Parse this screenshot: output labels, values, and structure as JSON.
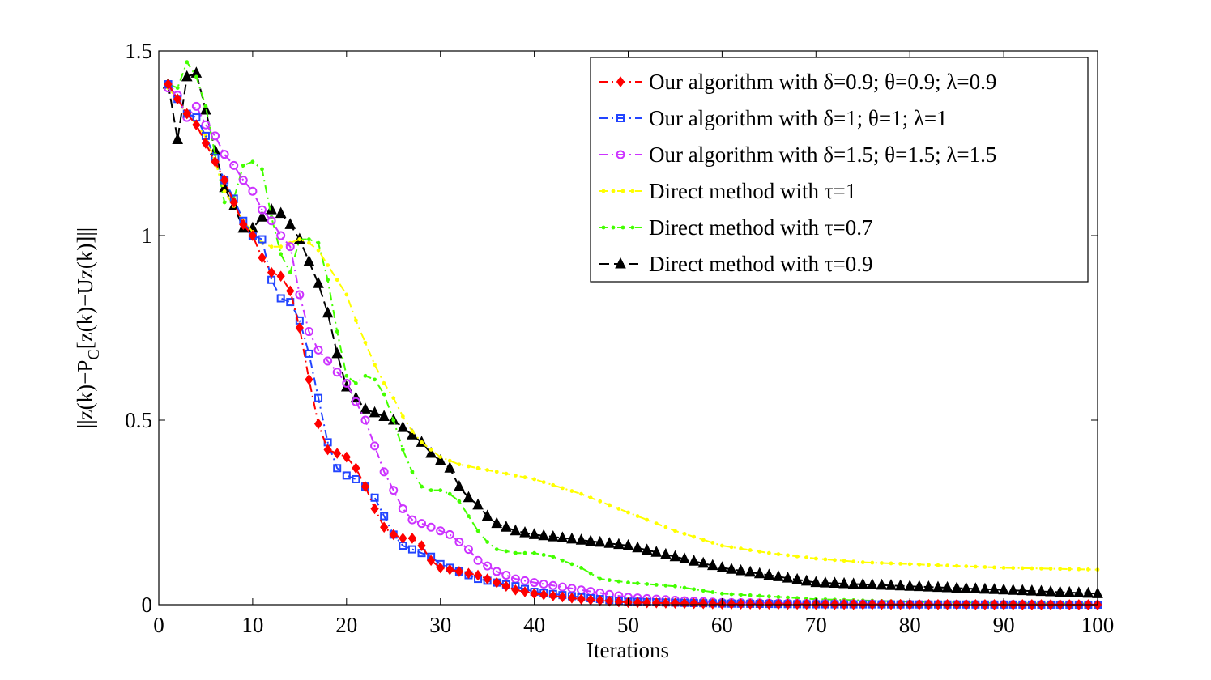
{
  "chart_data": {
    "type": "line",
    "title": "",
    "xlabel": "Iterations",
    "ylabel_main": "||z(k)−P",
    "ylabel_sub": "C",
    "ylabel_rest": "[z(k)−Uz(k)]||",
    "xlim": [
      0,
      100
    ],
    "ylim": [
      0,
      1.5
    ],
    "xticks": [
      0,
      10,
      20,
      30,
      40,
      50,
      60,
      70,
      80,
      90,
      100
    ],
    "xtick_labels": [
      "0",
      "10",
      "20",
      "30",
      "40",
      "50",
      "60",
      "70",
      "80",
      "90",
      "100"
    ],
    "yticks": [
      0,
      0.5,
      1,
      1.5
    ],
    "ytick_labels": [
      "0",
      "0.5",
      "1",
      "1.5"
    ],
    "grid": false,
    "legend_position": "top-right",
    "series": [
      {
        "name": "Our algorithm with δ=0.9; θ=0.9; λ=0.9",
        "color": "#ff0000",
        "marker": "diamond",
        "dash": "dashdot",
        "keypoints": [
          [
            1,
            1.41
          ],
          [
            2,
            1.37
          ],
          [
            3,
            1.33
          ],
          [
            4,
            1.3
          ],
          [
            5,
            1.25
          ],
          [
            6,
            1.2
          ],
          [
            7,
            1.15
          ],
          [
            8,
            1.09
          ],
          [
            9,
            1.03
          ],
          [
            10,
            1.0
          ],
          [
            11,
            0.94
          ],
          [
            12,
            0.9
          ],
          [
            13,
            0.89
          ],
          [
            14,
            0.85
          ],
          [
            15,
            0.75
          ],
          [
            16,
            0.61
          ],
          [
            17,
            0.49
          ],
          [
            18,
            0.42
          ],
          [
            19,
            0.41
          ],
          [
            20,
            0.4
          ],
          [
            21,
            0.37
          ],
          [
            22,
            0.32
          ],
          [
            23,
            0.26
          ],
          [
            24,
            0.21
          ],
          [
            25,
            0.19
          ],
          [
            26,
            0.18
          ],
          [
            27,
            0.18
          ],
          [
            28,
            0.16
          ],
          [
            29,
            0.12
          ],
          [
            30,
            0.1
          ],
          [
            32,
            0.09
          ],
          [
            34,
            0.08
          ],
          [
            36,
            0.06
          ],
          [
            38,
            0.04
          ],
          [
            40,
            0.03
          ],
          [
            45,
            0.015
          ],
          [
            50,
            0.006
          ],
          [
            60,
            0.002
          ],
          [
            70,
            0.001
          ],
          [
            100,
            0.0
          ]
        ]
      },
      {
        "name": "Our algorithm with δ=1; θ=1; λ=1",
        "color": "#2244ff",
        "marker": "square",
        "dash": "dashdot",
        "keypoints": [
          [
            1,
            1.41
          ],
          [
            2,
            1.37
          ],
          [
            3,
            1.33
          ],
          [
            4,
            1.32
          ],
          [
            5,
            1.27
          ],
          [
            6,
            1.21
          ],
          [
            7,
            1.15
          ],
          [
            8,
            1.1
          ],
          [
            9,
            1.04
          ],
          [
            10,
            1.0
          ],
          [
            11,
            0.99
          ],
          [
            12,
            0.88
          ],
          [
            13,
            0.83
          ],
          [
            14,
            0.82
          ],
          [
            15,
            0.77
          ],
          [
            16,
            0.68
          ],
          [
            17,
            0.56
          ],
          [
            18,
            0.44
          ],
          [
            19,
            0.37
          ],
          [
            20,
            0.35
          ],
          [
            21,
            0.34
          ],
          [
            22,
            0.32
          ],
          [
            23,
            0.29
          ],
          [
            24,
            0.24
          ],
          [
            25,
            0.19
          ],
          [
            26,
            0.16
          ],
          [
            27,
            0.15
          ],
          [
            28,
            0.14
          ],
          [
            29,
            0.13
          ],
          [
            30,
            0.11
          ],
          [
            32,
            0.09
          ],
          [
            34,
            0.07
          ],
          [
            36,
            0.06
          ],
          [
            38,
            0.05
          ],
          [
            40,
            0.035
          ],
          [
            45,
            0.02
          ],
          [
            50,
            0.008
          ],
          [
            60,
            0.003
          ],
          [
            70,
            0.001
          ],
          [
            100,
            0.0
          ]
        ]
      },
      {
        "name": "Our algorithm with δ=1.5; θ=1.5; λ=1.5",
        "color": "#cc33ff",
        "marker": "circle",
        "dash": "dashdot",
        "keypoints": [
          [
            1,
            1.4
          ],
          [
            2,
            1.38
          ],
          [
            3,
            1.32
          ],
          [
            4,
            1.35
          ],
          [
            5,
            1.3
          ],
          [
            6,
            1.27
          ],
          [
            7,
            1.22
          ],
          [
            8,
            1.19
          ],
          [
            9,
            1.15
          ],
          [
            10,
            1.12
          ],
          [
            11,
            1.07
          ],
          [
            12,
            1.04
          ],
          [
            13,
            1.0
          ],
          [
            14,
            0.97
          ],
          [
            15,
            0.84
          ],
          [
            16,
            0.74
          ],
          [
            17,
            0.69
          ],
          [
            18,
            0.66
          ],
          [
            19,
            0.63
          ],
          [
            20,
            0.6
          ],
          [
            21,
            0.55
          ],
          [
            22,
            0.5
          ],
          [
            23,
            0.43
          ],
          [
            24,
            0.36
          ],
          [
            25,
            0.31
          ],
          [
            26,
            0.26
          ],
          [
            27,
            0.23
          ],
          [
            28,
            0.22
          ],
          [
            29,
            0.21
          ],
          [
            30,
            0.2
          ],
          [
            31,
            0.19
          ],
          [
            32,
            0.17
          ],
          [
            33,
            0.15
          ],
          [
            34,
            0.12
          ],
          [
            36,
            0.09
          ],
          [
            38,
            0.07
          ],
          [
            40,
            0.06
          ],
          [
            45,
            0.04
          ],
          [
            50,
            0.02
          ],
          [
            55,
            0.012
          ],
          [
            60,
            0.006
          ],
          [
            70,
            0.003
          ],
          [
            80,
            0.001
          ],
          [
            100,
            0.0
          ]
        ]
      },
      {
        "name": "Direct method with τ=1",
        "color": "#ffff00",
        "marker": "dot",
        "dash": "dashdot",
        "keypoints": [
          [
            1,
            1.4
          ],
          [
            2,
            1.37
          ],
          [
            3,
            1.33
          ],
          [
            4,
            1.3
          ],
          [
            5,
            1.27
          ],
          [
            6,
            1.2
          ],
          [
            7,
            1.12
          ],
          [
            8,
            1.08
          ],
          [
            9,
            1.04
          ],
          [
            10,
            1.01
          ],
          [
            11,
            0.98
          ],
          [
            12,
            0.97
          ],
          [
            13,
            0.97
          ],
          [
            14,
            0.98
          ],
          [
            15,
            0.99
          ],
          [
            16,
            0.98
          ],
          [
            17,
            0.96
          ],
          [
            18,
            0.92
          ],
          [
            19,
            0.88
          ],
          [
            20,
            0.84
          ],
          [
            21,
            0.77
          ],
          [
            22,
            0.71
          ],
          [
            23,
            0.65
          ],
          [
            24,
            0.6
          ],
          [
            25,
            0.56
          ],
          [
            26,
            0.51
          ],
          [
            27,
            0.47
          ],
          [
            28,
            0.44
          ],
          [
            29,
            0.42
          ],
          [
            30,
            0.4
          ],
          [
            32,
            0.38
          ],
          [
            35,
            0.365
          ],
          [
            40,
            0.34
          ],
          [
            45,
            0.3
          ],
          [
            50,
            0.25
          ],
          [
            55,
            0.2
          ],
          [
            60,
            0.16
          ],
          [
            65,
            0.14
          ],
          [
            70,
            0.125
          ],
          [
            75,
            0.115
          ],
          [
            80,
            0.11
          ],
          [
            90,
            0.1
          ],
          [
            100,
            0.095
          ]
        ]
      },
      {
        "name": "Direct method with τ=0.7",
        "color": "#44ff00",
        "marker": "dot",
        "dash": "dashdot",
        "keypoints": [
          [
            1,
            1.41
          ],
          [
            2,
            1.4
          ],
          [
            3,
            1.47
          ],
          [
            4,
            1.43
          ],
          [
            5,
            1.35
          ],
          [
            6,
            1.22
          ],
          [
            7,
            1.09
          ],
          [
            8,
            1.1
          ],
          [
            9,
            1.19
          ],
          [
            10,
            1.2
          ],
          [
            11,
            1.18
          ],
          [
            12,
            1.05
          ],
          [
            13,
            0.95
          ],
          [
            14,
            0.9
          ],
          [
            15,
            0.99
          ],
          [
            16,
            0.99
          ],
          [
            17,
            0.98
          ],
          [
            18,
            0.88
          ],
          [
            19,
            0.74
          ],
          [
            20,
            0.62
          ],
          [
            21,
            0.6
          ],
          [
            22,
            0.62
          ],
          [
            23,
            0.61
          ],
          [
            24,
            0.57
          ],
          [
            25,
            0.5
          ],
          [
            26,
            0.42
          ],
          [
            27,
            0.36
          ],
          [
            28,
            0.32
          ],
          [
            29,
            0.31
          ],
          [
            30,
            0.31
          ],
          [
            31,
            0.3
          ],
          [
            32,
            0.28
          ],
          [
            33,
            0.24
          ],
          [
            34,
            0.2
          ],
          [
            35,
            0.17
          ],
          [
            36,
            0.15
          ],
          [
            38,
            0.14
          ],
          [
            40,
            0.14
          ],
          [
            42,
            0.13
          ],
          [
            45,
            0.1
          ],
          [
            47,
            0.07
          ],
          [
            50,
            0.06
          ],
          [
            55,
            0.05
          ],
          [
            60,
            0.03
          ],
          [
            70,
            0.015
          ],
          [
            80,
            0.008
          ],
          [
            90,
            0.004
          ],
          [
            100,
            0.003
          ]
        ]
      },
      {
        "name": "Direct method with τ=0.9",
        "color": "#000000",
        "marker": "triangle",
        "dash": "dashed",
        "keypoints": [
          [
            1,
            1.41
          ],
          [
            2,
            1.26
          ],
          [
            3,
            1.43
          ],
          [
            4,
            1.44
          ],
          [
            5,
            1.34
          ],
          [
            6,
            1.23
          ],
          [
            7,
            1.13
          ],
          [
            8,
            1.08
          ],
          [
            9,
            1.02
          ],
          [
            10,
            1.02
          ],
          [
            11,
            1.05
          ],
          [
            12,
            1.07
          ],
          [
            13,
            1.06
          ],
          [
            14,
            1.03
          ],
          [
            15,
            0.99
          ],
          [
            16,
            0.93
          ],
          [
            17,
            0.87
          ],
          [
            18,
            0.79
          ],
          [
            19,
            0.68
          ],
          [
            20,
            0.59
          ],
          [
            21,
            0.56
          ],
          [
            22,
            0.53
          ],
          [
            23,
            0.52
          ],
          [
            24,
            0.51
          ],
          [
            25,
            0.5
          ],
          [
            26,
            0.48
          ],
          [
            27,
            0.46
          ],
          [
            28,
            0.44
          ],
          [
            29,
            0.41
          ],
          [
            30,
            0.39
          ],
          [
            31,
            0.37
          ],
          [
            32,
            0.32
          ],
          [
            33,
            0.29
          ],
          [
            34,
            0.27
          ],
          [
            35,
            0.24
          ],
          [
            36,
            0.22
          ],
          [
            37,
            0.21
          ],
          [
            38,
            0.2
          ],
          [
            40,
            0.19
          ],
          [
            45,
            0.175
          ],
          [
            50,
            0.16
          ],
          [
            55,
            0.13
          ],
          [
            60,
            0.1
          ],
          [
            65,
            0.08
          ],
          [
            70,
            0.06
          ],
          [
            75,
            0.055
          ],
          [
            80,
            0.05
          ],
          [
            85,
            0.045
          ],
          [
            90,
            0.04
          ],
          [
            95,
            0.035
          ],
          [
            100,
            0.03
          ]
        ]
      }
    ]
  }
}
